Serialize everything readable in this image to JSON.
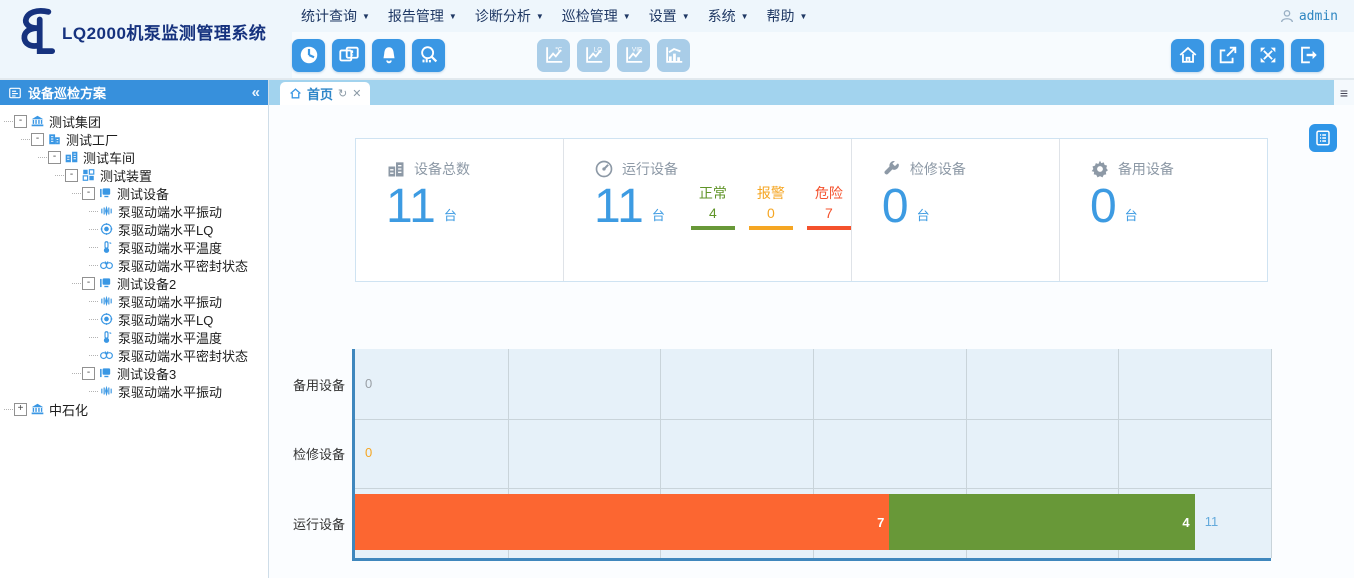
{
  "header": {
    "logo_text": "LQ2000机泵监测管理系统",
    "user": "admin",
    "menu": [
      {
        "label": "统计查询"
      },
      {
        "label": "报告管理"
      },
      {
        "label": "诊断分析"
      },
      {
        "label": "巡检管理"
      },
      {
        "label": "设置"
      },
      {
        "label": "系统"
      },
      {
        "label": "帮助"
      }
    ]
  },
  "toolbar": {
    "left": [
      {
        "icon": "clock"
      },
      {
        "icon": "monitors"
      },
      {
        "icon": "alarm-bell"
      },
      {
        "icon": "search-stats"
      }
    ],
    "charts": [
      {
        "icon": "temp-trend-chart",
        "badge": "℃"
      },
      {
        "icon": "lq-trend-chart",
        "badge": "LQ"
      },
      {
        "icon": "vib-trend-chart",
        "badge": "VIB"
      },
      {
        "icon": "histogram-chart",
        "badge": ""
      }
    ],
    "right": [
      {
        "icon": "home"
      },
      {
        "icon": "popout-window"
      },
      {
        "icon": "fullscreen"
      },
      {
        "icon": "exit"
      }
    ]
  },
  "tabs": {
    "active": {
      "label": "首页"
    },
    "menu_icon": "≡"
  },
  "sidebar": {
    "title": "设备巡检方案",
    "collapse_icon": "«",
    "tree": [
      {
        "label": "测试集团",
        "depth": 0,
        "icon": "org",
        "toggle": "-"
      },
      {
        "label": "测试工厂",
        "depth": 1,
        "icon": "factory",
        "toggle": "-"
      },
      {
        "label": "测试车间",
        "depth": 2,
        "icon": "workshop",
        "toggle": "-"
      },
      {
        "label": "测试装置",
        "depth": 3,
        "icon": "unit",
        "toggle": "-"
      },
      {
        "label": "测试设备",
        "depth": 4,
        "icon": "device",
        "toggle": "-"
      },
      {
        "label": "泵驱动端水平振动",
        "depth": 5,
        "icon": "vibration",
        "toggle": ""
      },
      {
        "label": "泵驱动端水平LQ",
        "depth": 5,
        "icon": "lq",
        "toggle": ""
      },
      {
        "label": "泵驱动端水平温度",
        "depth": 5,
        "icon": "temperature",
        "toggle": ""
      },
      {
        "label": "泵驱动端水平密封状态",
        "depth": 5,
        "icon": "seal",
        "toggle": ""
      },
      {
        "label": "测试设备2",
        "depth": 4,
        "icon": "device",
        "toggle": "-"
      },
      {
        "label": "泵驱动端水平振动",
        "depth": 5,
        "icon": "vibration",
        "toggle": ""
      },
      {
        "label": "泵驱动端水平LQ",
        "depth": 5,
        "icon": "lq",
        "toggle": ""
      },
      {
        "label": "泵驱动端水平温度",
        "depth": 5,
        "icon": "temperature",
        "toggle": ""
      },
      {
        "label": "泵驱动端水平密封状态",
        "depth": 5,
        "icon": "seal",
        "toggle": ""
      },
      {
        "label": "测试设备3",
        "depth": 4,
        "icon": "device",
        "toggle": "-"
      },
      {
        "label": "泵驱动端水平振动",
        "depth": 5,
        "icon": "vibration",
        "toggle": ""
      },
      {
        "label": "中石化",
        "depth": 0,
        "icon": "org",
        "toggle": "+"
      }
    ]
  },
  "stats": {
    "cards": [
      {
        "label": "设备总数",
        "icon": "factory-stat",
        "value": "11",
        "unit": "台"
      },
      {
        "label": "运行设备",
        "icon": "gauge",
        "value": "11",
        "unit": "台",
        "breakdown": [
          {
            "label": "正常",
            "value": "4",
            "color": "#5f9427",
            "bar_color": "#689838"
          },
          {
            "label": "报警",
            "value": "0",
            "color": "#f5a623",
            "bar_color": "#f5a623"
          },
          {
            "label": "危险",
            "value": "7",
            "color": "#f4512c",
            "bar_color": "#f4512c"
          }
        ]
      },
      {
        "label": "检修设备",
        "icon": "wrench",
        "value": "0",
        "unit": "台"
      },
      {
        "label": "备用设备",
        "icon": "gear",
        "value": "0",
        "unit": "台"
      }
    ]
  },
  "chart_data": {
    "type": "bar",
    "orientation": "horizontal",
    "title": "",
    "categories": [
      "备用设备",
      "检修设备",
      "运行设备"
    ],
    "series": [
      {
        "name": "危险",
        "color": "#fc6631",
        "values": [
          0,
          0,
          7
        ]
      },
      {
        "name": "正常",
        "color": "#689838",
        "values": [
          0,
          0,
          4
        ]
      }
    ],
    "totals": [
      0,
      0,
      11
    ],
    "zero_label_colors": [
      "#9aa0a6",
      "#f5a623",
      null
    ],
    "total_label_color": "#64aadc",
    "xlim": [
      0,
      12
    ],
    "grid_step": 2,
    "grid": true,
    "legend": "none",
    "plot_bg": "#e6f1f9",
    "axis_color": "#3f87bd"
  },
  "colors": {
    "accent_blue": "#3a97e4",
    "disabled_blue": "#a9cde8",
    "sidebar_header": "#3790dc",
    "tabbar": "#a2d3ee",
    "big_number": "#3d9be2",
    "bar_danger": "#fc6631",
    "bar_normal": "#689838"
  }
}
